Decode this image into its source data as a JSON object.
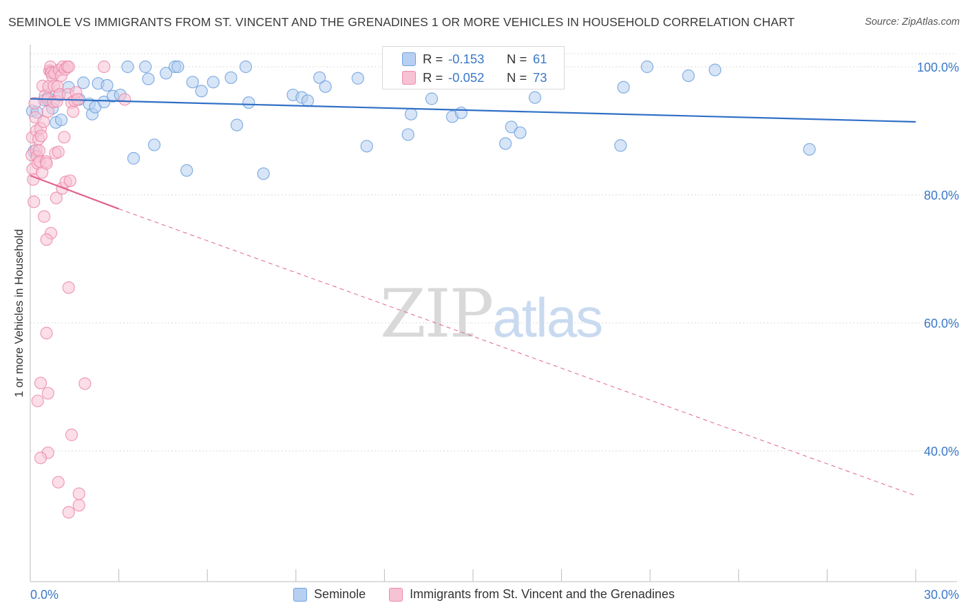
{
  "header": {
    "title": "SEMINOLE VS IMMIGRANTS FROM ST. VINCENT AND THE GRENADINES 1 OR MORE VEHICLES IN HOUSEHOLD CORRELATION CHART",
    "source": "Source: ZipAtlas.com"
  },
  "watermark": {
    "zip": "ZIP",
    "atlas": "atlas"
  },
  "colors": {
    "seminole": "#6fa1de",
    "seminole_fill": "#b7cff1",
    "seminole_line": "#2f6fc6",
    "immigrants": "#ec8aab",
    "immigrants_fill": "#f7c2d4",
    "immigrants_line": "#e0628e",
    "axis_label": "#3a78c9",
    "grid": "#d9d9d9"
  },
  "stats": {
    "seminole": {
      "r_label": "R =",
      "r_value": "-0.153",
      "n_label": "N =",
      "n_value": "61"
    },
    "immigrants": {
      "r_label": "R =",
      "r_value": "-0.052",
      "n_label": "N =",
      "n_value": "73"
    }
  },
  "legend": {
    "seminole": "Seminole",
    "immigrants": "Immigrants from St. Vincent and the Grenadines"
  },
  "chart_data": {
    "type": "scatter",
    "title": "SEMINOLE VS IMMIGRANTS FROM ST. VINCENT AND THE GRENADINES 1 OR MORE VEHICLES IN HOUSEHOLD CORRELATION CHART",
    "xlabel": "",
    "ylabel": "1 or more Vehicles in Household",
    "xlim": [
      0,
      30
    ],
    "ylim": [
      22,
      102
    ],
    "x_tick_labels": [
      "0.0%",
      "30.0%"
    ],
    "y_ticks": [
      40,
      60,
      80,
      100
    ],
    "y_tick_labels": [
      "40.0%",
      "60.0%",
      "80.0%",
      "100.0%"
    ],
    "grid": true,
    "legend_position": "bottom",
    "series": [
      {
        "name": "Seminole",
        "points": [
          [
            0.07,
            93.1
          ],
          [
            0.12,
            86.8
          ],
          [
            0.23,
            92.9
          ],
          [
            0.47,
            94.8
          ],
          [
            0.6,
            95.2
          ],
          [
            0.75,
            93.5
          ],
          [
            0.87,
            91.3
          ],
          [
            0.98,
            95.5
          ],
          [
            1.05,
            91.7
          ],
          [
            1.3,
            96.8
          ],
          [
            1.66,
            94.9
          ],
          [
            1.8,
            97.5
          ],
          [
            2.0,
            94.2
          ],
          [
            2.1,
            92.6
          ],
          [
            2.2,
            93.7
          ],
          [
            2.3,
            97.4
          ],
          [
            2.5,
            94.5
          ],
          [
            2.6,
            97.1
          ],
          [
            2.8,
            95.4
          ],
          [
            3.05,
            95.6
          ],
          [
            3.3,
            100.0
          ],
          [
            3.5,
            85.7
          ],
          [
            3.9,
            100.0
          ],
          [
            4.0,
            98.1
          ],
          [
            4.2,
            87.8
          ],
          [
            4.6,
            99.0
          ],
          [
            4.9,
            100.0
          ],
          [
            5.0,
            100.0
          ],
          [
            5.3,
            83.8
          ],
          [
            5.5,
            97.6
          ],
          [
            5.8,
            96.2
          ],
          [
            6.2,
            97.6
          ],
          [
            6.8,
            98.3
          ],
          [
            7.0,
            90.9
          ],
          [
            7.3,
            100.0
          ],
          [
            7.4,
            94.4
          ],
          [
            7.9,
            83.3
          ],
          [
            8.9,
            95.6
          ],
          [
            9.2,
            95.2
          ],
          [
            9.4,
            94.7
          ],
          [
            9.8,
            98.3
          ],
          [
            10.0,
            96.9
          ],
          [
            11.1,
            98.2
          ],
          [
            11.4,
            87.6
          ],
          [
            12.5,
            98.0
          ],
          [
            12.8,
            89.4
          ],
          [
            12.9,
            92.6
          ],
          [
            13.6,
            95.0
          ],
          [
            14.3,
            92.2
          ],
          [
            14.6,
            92.8
          ],
          [
            15.1,
            99.0
          ],
          [
            16.1,
            88.0
          ],
          [
            16.3,
            90.6
          ],
          [
            16.6,
            89.7
          ],
          [
            17.1,
            95.2
          ],
          [
            20.0,
            87.7
          ],
          [
            20.1,
            96.8
          ],
          [
            20.9,
            100.0
          ],
          [
            22.3,
            98.6
          ],
          [
            23.2,
            99.5
          ],
          [
            26.4,
            87.1
          ]
        ]
      },
      {
        "name": "Immigrants from St. Vincent and the Grenadines",
        "points": [
          [
            0.05,
            86.2
          ],
          [
            0.07,
            89.0
          ],
          [
            0.08,
            84.0
          ],
          [
            0.1,
            82.4
          ],
          [
            0.12,
            78.9
          ],
          [
            0.15,
            94.3
          ],
          [
            0.17,
            92.1
          ],
          [
            0.2,
            87.0
          ],
          [
            0.21,
            90.0
          ],
          [
            0.23,
            86.0
          ],
          [
            0.25,
            84.9
          ],
          [
            0.28,
            88.7
          ],
          [
            0.3,
            86.9
          ],
          [
            0.32,
            85.2
          ],
          [
            0.35,
            90.4
          ],
          [
            0.37,
            89.2
          ],
          [
            0.4,
            83.5
          ],
          [
            0.42,
            97.0
          ],
          [
            0.45,
            91.4
          ],
          [
            0.47,
            76.6
          ],
          [
            0.5,
            95.5
          ],
          [
            0.53,
            85.2
          ],
          [
            0.55,
            84.9
          ],
          [
            0.58,
            94.9
          ],
          [
            0.6,
            93.0
          ],
          [
            0.62,
            96.9
          ],
          [
            0.65,
            99.4
          ],
          [
            0.68,
            100.0
          ],
          [
            0.7,
            99.2
          ],
          [
            0.72,
            99.0
          ],
          [
            0.75,
            98.5
          ],
          [
            0.78,
            94.5
          ],
          [
            0.8,
            97.0
          ],
          [
            0.82,
            99.0
          ],
          [
            0.85,
            86.5
          ],
          [
            0.88,
            79.5
          ],
          [
            0.9,
            94.6
          ],
          [
            0.92,
            96.9
          ],
          [
            0.95,
            86.7
          ],
          [
            0.98,
            99.5
          ],
          [
            1.0,
            95.7
          ],
          [
            1.05,
            98.6
          ],
          [
            1.08,
            81.0
          ],
          [
            1.1,
            100.0
          ],
          [
            1.15,
            89.0
          ],
          [
            1.18,
            99.6
          ],
          [
            1.2,
            82.0
          ],
          [
            1.25,
            100.0
          ],
          [
            1.28,
            95.7
          ],
          [
            1.3,
            100.0
          ],
          [
            1.35,
            82.2
          ],
          [
            1.4,
            94.4
          ],
          [
            1.45,
            93.0
          ],
          [
            1.5,
            94.7
          ],
          [
            1.55,
            96.0
          ],
          [
            1.6,
            94.9
          ],
          [
            1.3,
            65.5
          ],
          [
            0.55,
            58.4
          ],
          [
            0.35,
            50.6
          ],
          [
            0.6,
            49.0
          ],
          [
            0.25,
            47.8
          ],
          [
            1.85,
            50.5
          ],
          [
            1.4,
            42.5
          ],
          [
            0.6,
            39.7
          ],
          [
            0.35,
            38.9
          ],
          [
            0.95,
            35.1
          ],
          [
            1.65,
            33.3
          ],
          [
            1.65,
            31.5
          ],
          [
            1.3,
            30.4
          ],
          [
            0.7,
            74.0
          ],
          [
            0.55,
            73.0
          ],
          [
            2.5,
            100.0
          ],
          [
            3.2,
            94.9
          ]
        ]
      }
    ],
    "trendlines": [
      {
        "series": "Seminole",
        "from": [
          0,
          95.0
        ],
        "to": [
          30,
          91.4
        ],
        "style": "solid"
      },
      {
        "series": "Immigrants from St. Vincent and the Grenadines",
        "from": [
          0,
          83.0
        ],
        "to": [
          3.0,
          77.8
        ],
        "style": "solid"
      },
      {
        "series": "Immigrants from St. Vincent and the Grenadines",
        "from": [
          3.0,
          77.8
        ],
        "to": [
          30,
          33.0
        ],
        "style": "dashed"
      }
    ]
  }
}
